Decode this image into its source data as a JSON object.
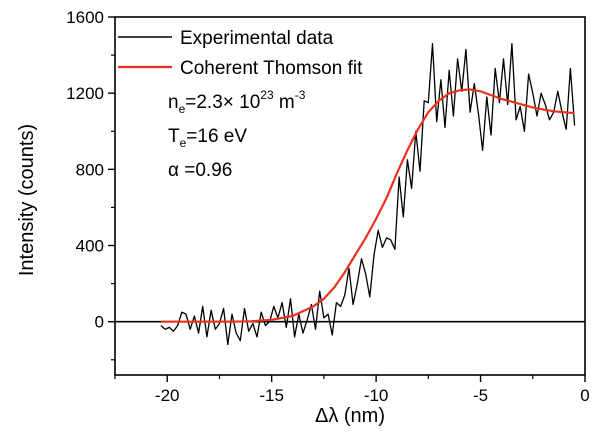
{
  "chart_data": {
    "type": "line",
    "title": "",
    "xlabel": "Δλ  (nm)",
    "ylabel": "Intensity (counts)",
    "xlim": [
      -22.5,
      0
    ],
    "ylim": [
      -280,
      1600
    ],
    "xticks": [
      -20,
      -15,
      -10,
      -5,
      0
    ],
    "yticks": [
      0,
      400,
      800,
      1200,
      1600
    ],
    "xtick_labels": [
      "-20",
      "-15",
      "-10",
      "-5",
      "0"
    ],
    "ytick_labels": [
      "0",
      "400",
      "800",
      "1200",
      "1600"
    ],
    "zero_line": 0,
    "grid": false,
    "legend_position": "top-left",
    "colors": {
      "experimental": "#000000",
      "fit": "#e8321e"
    },
    "series": [
      {
        "name": "Experimental data",
        "color": "#000000",
        "x": [
          -20.3,
          -20.1,
          -19.9,
          -19.7,
          -19.5,
          -19.3,
          -19.1,
          -18.9,
          -18.7,
          -18.5,
          -18.3,
          -18.1,
          -17.9,
          -17.7,
          -17.5,
          -17.3,
          -17.1,
          -16.9,
          -16.7,
          -16.5,
          -16.3,
          -16.1,
          -15.9,
          -15.7,
          -15.5,
          -15.3,
          -15.1,
          -14.9,
          -14.7,
          -14.5,
          -14.3,
          -14.1,
          -13.9,
          -13.7,
          -13.5,
          -13.3,
          -13.1,
          -12.9,
          -12.7,
          -12.5,
          -12.3,
          -12.1,
          -11.9,
          -11.7,
          -11.5,
          -11.3,
          -11.1,
          -10.9,
          -10.7,
          -10.5,
          -10.3,
          -10.1,
          -9.9,
          -9.7,
          -9.5,
          -9.3,
          -9.1,
          -8.9,
          -8.7,
          -8.5,
          -8.3,
          -8.1,
          -7.9,
          -7.7,
          -7.5,
          -7.3,
          -7.1,
          -6.9,
          -6.7,
          -6.5,
          -6.3,
          -6.1,
          -5.9,
          -5.7,
          -5.5,
          -5.3,
          -5.1,
          -4.9,
          -4.7,
          -4.5,
          -4.3,
          -4.1,
          -3.9,
          -3.7,
          -3.5,
          -3.3,
          -3.1,
          -2.9,
          -2.7,
          -2.5,
          -2.3,
          -2.1,
          -1.9,
          -1.7,
          -1.5,
          -1.3,
          -1.1,
          -0.9,
          -0.7,
          -0.5
        ],
        "y": [
          -20,
          -40,
          -30,
          -50,
          -20,
          50,
          40,
          -40,
          30,
          -60,
          80,
          -80,
          60,
          -40,
          -10,
          70,
          -120,
          40,
          -60,
          -100,
          70,
          -50,
          -10,
          -80,
          50,
          -20,
          0,
          80,
          20,
          100,
          -30,
          120,
          -80,
          40,
          -60,
          10,
          90,
          -40,
          160,
          20,
          40,
          -70,
          100,
          80,
          140,
          280,
          90,
          200,
          330,
          250,
          130,
          350,
          480,
          390,
          440,
          430,
          380,
          760,
          550,
          850,
          700,
          1000,
          790,
          1160,
          1150,
          1460,
          1050,
          1270,
          1020,
          1320,
          1080,
          1380,
          1210,
          1430,
          1100,
          1250,
          1090,
          900,
          1180,
          980,
          1330,
          1150,
          1380,
          1140,
          1460,
          1060,
          1130,
          1000,
          1300,
          1200,
          1080,
          1200,
          1140,
          1060,
          1100,
          1210,
          1100,
          1010,
          1330,
          1030
        ]
      },
      {
        "name": "Coherent Thomson fit",
        "color": "#e8321e",
        "x": [
          -20.3,
          -19,
          -18,
          -17,
          -16,
          -15,
          -14,
          -13,
          -12.5,
          -12,
          -11.5,
          -11,
          -10.5,
          -10,
          -9.5,
          -9,
          -8.5,
          -8,
          -7.5,
          -7,
          -6.5,
          -6,
          -5.5,
          -5,
          -4.5,
          -4,
          -3.5,
          -3,
          -2.5,
          -2,
          -1.5,
          -1,
          -0.5
        ],
        "y": [
          0,
          0,
          0,
          0,
          2,
          10,
          30,
          80,
          120,
          180,
          260,
          350,
          440,
          540,
          650,
          780,
          900,
          1010,
          1100,
          1160,
          1200,
          1215,
          1220,
          1210,
          1190,
          1170,
          1155,
          1140,
          1125,
          1115,
          1105,
          1100,
          1095
        ]
      }
    ],
    "annotations": [
      {
        "main": "n",
        "sub": "e",
        "rest": "=2.3× 10",
        "sup": "23",
        "unit": " m",
        "unit_sup": "-3"
      },
      {
        "main": "T",
        "sub": "e",
        "rest": "=16 eV"
      },
      {
        "main": "α =0.96"
      }
    ]
  }
}
